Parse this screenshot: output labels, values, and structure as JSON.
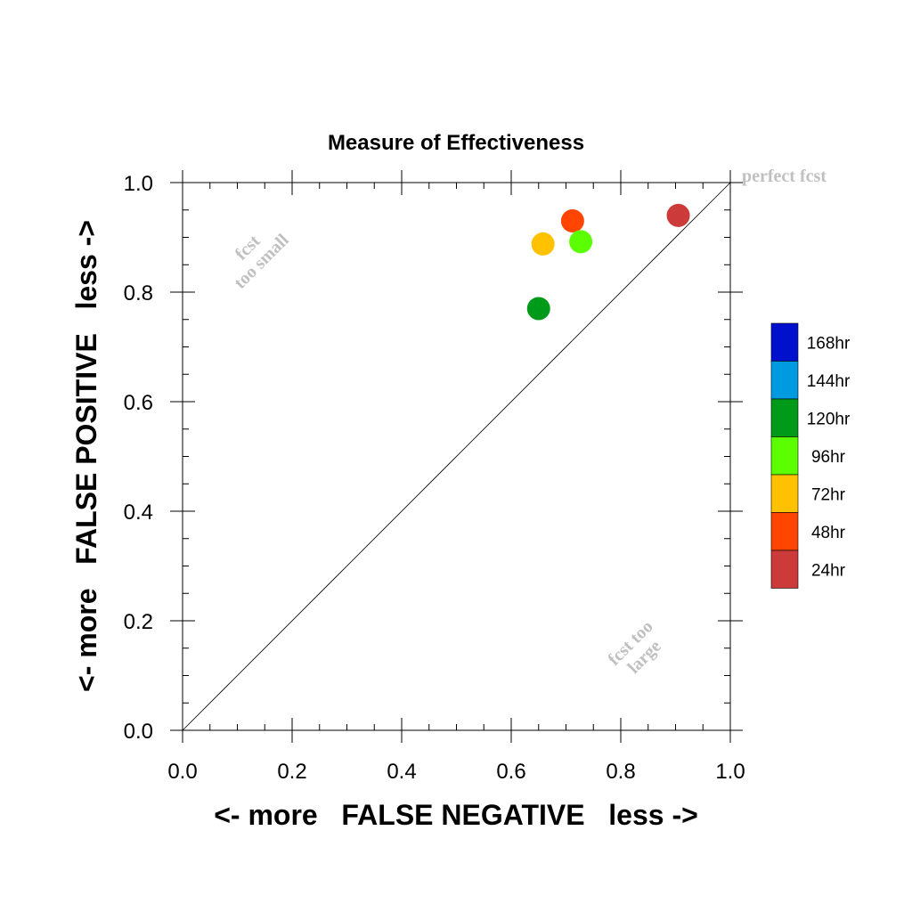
{
  "chart_data": {
    "type": "scatter",
    "title": "Measure of Effectiveness",
    "xlabel": "<- more   FALSE NEGATIVE   less ->",
    "ylabel": "<- more   FALSE POSITIVE   less ->",
    "xlim": [
      0.0,
      1.0
    ],
    "ylim": [
      0.0,
      1.0
    ],
    "x_ticks": [
      "0.0",
      "0.2",
      "0.4",
      "0.6",
      "0.8",
      "1.0"
    ],
    "y_ticks": [
      "0.0",
      "0.2",
      "0.4",
      "0.6",
      "0.8",
      "1.0"
    ],
    "diagonal_line": true,
    "grid": false,
    "legend_placement": "right",
    "points": [
      {
        "label": "24hr",
        "x": 0.905,
        "y": 0.94,
        "color": "#cc3a3a"
      },
      {
        "label": "48hr",
        "x": 0.712,
        "y": 0.93,
        "color": "#ff4500"
      },
      {
        "label": "72hr",
        "x": 0.658,
        "y": 0.888,
        "color": "#ffc100"
      },
      {
        "label": "96hr",
        "x": 0.727,
        "y": 0.892,
        "color": "#5cff00"
      },
      {
        "label": "120hr",
        "x": 0.65,
        "y": 0.77,
        "color": "#009a1a"
      }
    ],
    "legend": [
      {
        "label": "168hr",
        "color": "#0010cc"
      },
      {
        "label": "144hr",
        "color": "#009ae0"
      },
      {
        "label": "120hr",
        "color": "#009a1a"
      },
      {
        "label": "96hr",
        "color": "#5cff00"
      },
      {
        "label": "72hr",
        "color": "#ffc100"
      },
      {
        "label": "48hr",
        "color": "#ff4500"
      },
      {
        "label": "24hr",
        "color": "#cc3a3a"
      }
    ],
    "annotations": {
      "perfect": "perfect fcst",
      "small_line1": "fcst",
      "small_line2": "too small",
      "large_line1": "fcst too",
      "large_line2": "large"
    }
  }
}
